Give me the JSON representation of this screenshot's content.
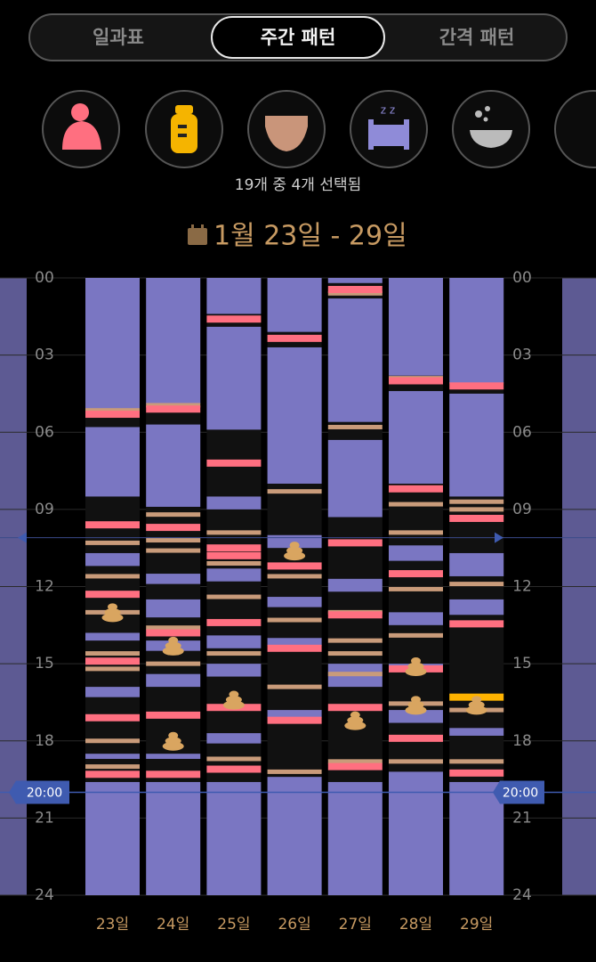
{
  "tabs": [
    "일과표",
    "주간 패턴",
    "간격 패턴"
  ],
  "selected_tab": 1,
  "selection_text": "19개 중 4개 선택됨",
  "chart_data": {
    "type": "timeline",
    "title": "1월 23일 - 29일",
    "ylim": [
      0,
      24
    ],
    "yticks": [
      {
        "value": 0,
        "label": "00"
      },
      {
        "value": 3,
        "label": "03"
      },
      {
        "value": 6,
        "label": "06"
      },
      {
        "value": 9,
        "label": "09"
      },
      12,
      15,
      18,
      21,
      24
    ],
    "grid": true,
    "now": {
      "value": 20,
      "label": "20:00"
    },
    "marker": 10.1,
    "colors": {
      "sleep": "#7a76c2",
      "feed": "#ff6f80",
      "bottle": "#c99b7a",
      "poop": "#d9a560",
      "highlight": "#ffb300",
      "awake": "#111111",
      "label": "#c79a62",
      "today": "#ff4d4d"
    },
    "days": [
      {
        "label": "23일",
        "sleep": [
          [
            0,
            5.1
          ],
          [
            5.8,
            8.5
          ],
          [
            10.7,
            11.2
          ],
          [
            13.8,
            14.1
          ],
          [
            15.9,
            16.3
          ],
          [
            18.5,
            18.7
          ],
          [
            19.6,
            24
          ]
        ],
        "feed": [
          5.3,
          9.6,
          12.3,
          14.9,
          17.1,
          19.3
        ],
        "bottle": [
          5.15,
          10.3,
          11.6,
          13.0,
          14.6,
          15.2,
          18.0,
          19.0
        ],
        "poop": [
          13.0
        ]
      },
      {
        "label": "24일",
        "sleep": [
          [
            0,
            4.9
          ],
          [
            5.7,
            8.9
          ],
          [
            11.5,
            11.9
          ],
          [
            12.5,
            13.2
          ],
          [
            14.1,
            14.5
          ],
          [
            15.4,
            15.9
          ],
          [
            18.5,
            18.7
          ],
          [
            19.6,
            24
          ]
        ],
        "feed": [
          5.1,
          9.7,
          13.8,
          17.0,
          19.3
        ],
        "bottle": [
          4.95,
          9.2,
          10.2,
          10.6,
          13.6,
          15.0
        ],
        "poop": [
          14.3,
          18.0
        ]
      },
      {
        "label": "25일",
        "sleep": [
          [
            0,
            1.4
          ],
          [
            1.9,
            5.9
          ],
          [
            8.5,
            9.0
          ],
          [
            11.3,
            11.8
          ],
          [
            13.9,
            14.4
          ],
          [
            15.0,
            15.5
          ],
          [
            17.7,
            18.1
          ],
          [
            19.6,
            24
          ]
        ],
        "feed": [
          1.6,
          7.2,
          10.5,
          10.8,
          13.4,
          16.7,
          19.1
        ],
        "bottle": [
          9.9,
          11.1,
          12.4,
          14.6,
          18.7
        ],
        "poop": [
          16.4
        ]
      },
      {
        "label": "26일",
        "sleep": [
          [
            0,
            2.1
          ],
          [
            2.7,
            8.0
          ],
          [
            10.0,
            10.5
          ],
          [
            12.4,
            12.8
          ],
          [
            14.0,
            14.3
          ],
          [
            16.8,
            17.1
          ],
          [
            19.4,
            24
          ]
        ],
        "feed": [
          2.35,
          11.2,
          14.4,
          17.2
        ],
        "bottle": [
          8.3,
          11.6,
          13.3,
          15.9,
          19.2
        ],
        "poop": [
          10.6
        ]
      },
      {
        "label": "27일",
        "sleep": [
          [
            0,
            0.2
          ],
          [
            0.8,
            5.6
          ],
          [
            6.3,
            9.3
          ],
          [
            11.7,
            12.2
          ],
          [
            15.0,
            15.9
          ],
          [
            19.6,
            24
          ]
        ],
        "feed": [
          0.45,
          10.3,
          13.1,
          16.7,
          19.0
        ],
        "bottle": [
          0.6,
          5.8,
          13.0,
          14.1,
          14.6,
          15.4,
          18.8
        ],
        "poop": [
          17.2
        ]
      },
      {
        "label": "28일",
        "sleep": [
          [
            0,
            3.8
          ],
          [
            4.4,
            8.0
          ],
          [
            10.4,
            11.0
          ],
          [
            13.0,
            13.5
          ],
          [
            15.0,
            15.3
          ],
          [
            16.8,
            17.3
          ],
          [
            19.2,
            24
          ]
        ],
        "feed": [
          4.0,
          8.2,
          11.5,
          15.2,
          17.9
        ],
        "bottle": [
          3.9,
          8.8,
          9.9,
          12.1,
          13.9,
          16.55,
          18.8
        ],
        "poop": [
          15.1,
          16.6
        ]
      },
      {
        "label": "29일",
        "sleep": [
          [
            0,
            4.1
          ],
          [
            4.5,
            8.5
          ],
          [
            10.7,
            11.6
          ],
          [
            12.5,
            13.1
          ],
          [
            17.5,
            17.8
          ],
          [
            19.6,
            24
          ]
        ],
        "feed": [
          4.2,
          9.35,
          13.45,
          19.25
        ],
        "bottle": [
          8.7,
          9.0,
          11.9,
          16.8,
          18.8
        ],
        "poop": [
          16.6
        ],
        "highlight": [
          16.3
        ],
        "today": true
      }
    ]
  }
}
